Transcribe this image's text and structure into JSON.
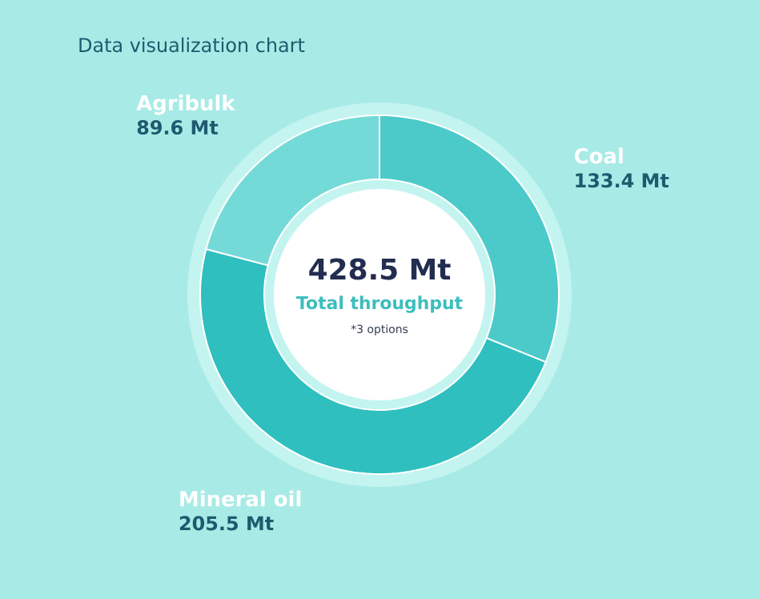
{
  "chart_data": {
    "type": "donut",
    "title": "Data visualization chart",
    "categories": [
      "Agribulk",
      "Coal",
      "Mineral oil"
    ],
    "values": [
      89.6,
      133.4,
      205.5
    ],
    "value_labels": [
      "89.6 Mt",
      "133.4 Mt",
      "205.5 Mt"
    ],
    "colors": [
      "#74dad8",
      "#4ccaca",
      "#2fbfbf"
    ],
    "annotations": [
      "428.5 Mt",
      "Total throughput",
      "*3 options"
    ]
  }
}
